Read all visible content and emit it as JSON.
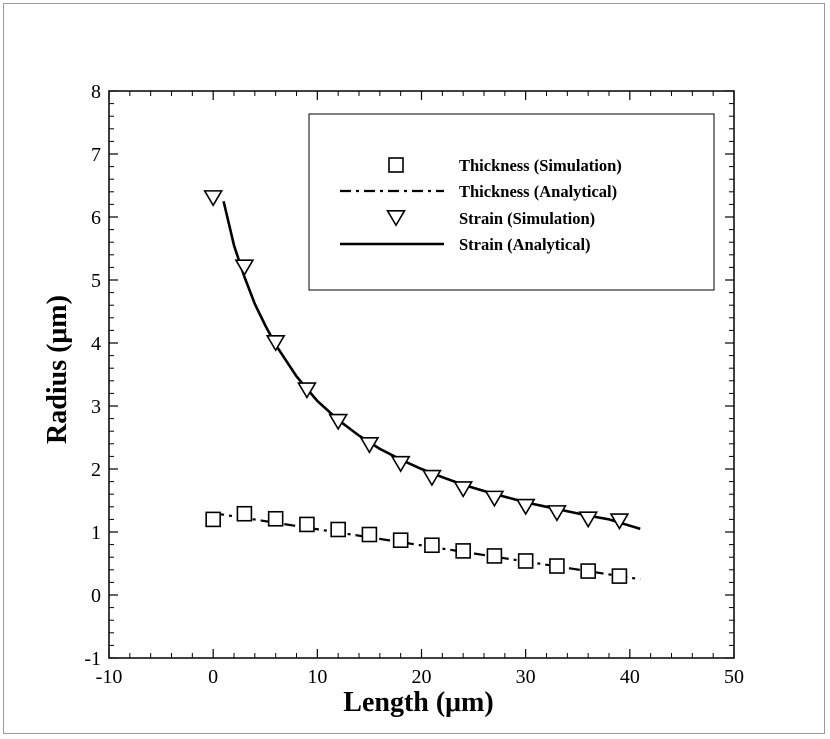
{
  "chart_data": {
    "type": "line",
    "xlabel": "Length (μm)",
    "ylabel": "Radius (μm)",
    "xlim": [
      -10,
      50
    ],
    "ylim": [
      -1,
      8
    ],
    "xticks": [
      "-10",
      "0",
      "10",
      "20",
      "30",
      "40",
      "50"
    ],
    "yticks": [
      "-1",
      "0",
      "1",
      "2",
      "3",
      "4",
      "5",
      "6",
      "7",
      "8"
    ],
    "grid": false,
    "legend_position": "top-right",
    "series": [
      {
        "name": "Thickness (Simulation)",
        "style": "square-markers",
        "x": [
          0,
          3,
          6,
          9,
          12,
          15,
          18,
          21,
          24,
          27,
          30,
          33,
          36,
          39
        ],
        "y": [
          1.2,
          1.29,
          1.21,
          1.12,
          1.04,
          0.96,
          0.87,
          0.79,
          0.7,
          0.62,
          0.54,
          0.46,
          0.38,
          0.3
        ]
      },
      {
        "name": "Thickness (Analytical)",
        "style": "dash-dot-line",
        "x": [
          0,
          41
        ],
        "y": [
          1.3,
          0.25
        ]
      },
      {
        "name": "Strain (Simulation)",
        "style": "triangle-down-markers",
        "x": [
          0,
          3,
          6,
          9,
          12,
          15,
          18,
          21,
          24,
          27,
          30,
          33,
          36,
          39
        ],
        "y": [
          6.3,
          5.2,
          4.0,
          3.25,
          2.75,
          2.38,
          2.08,
          1.86,
          1.68,
          1.53,
          1.4,
          1.3,
          1.2,
          1.17
        ]
      },
      {
        "name": "Strain (Analytical)",
        "style": "solid-line",
        "x": [
          1,
          2,
          3,
          4,
          5,
          6,
          8,
          10,
          12,
          14,
          16,
          18,
          20,
          22,
          24,
          26,
          28,
          30,
          32,
          34,
          36,
          38,
          41
        ],
        "y": [
          6.25,
          5.55,
          5.05,
          4.62,
          4.28,
          3.97,
          3.47,
          3.08,
          2.78,
          2.53,
          2.32,
          2.15,
          2.0,
          1.87,
          1.75,
          1.65,
          1.56,
          1.47,
          1.4,
          1.33,
          1.26,
          1.2,
          1.05
        ]
      }
    ]
  }
}
